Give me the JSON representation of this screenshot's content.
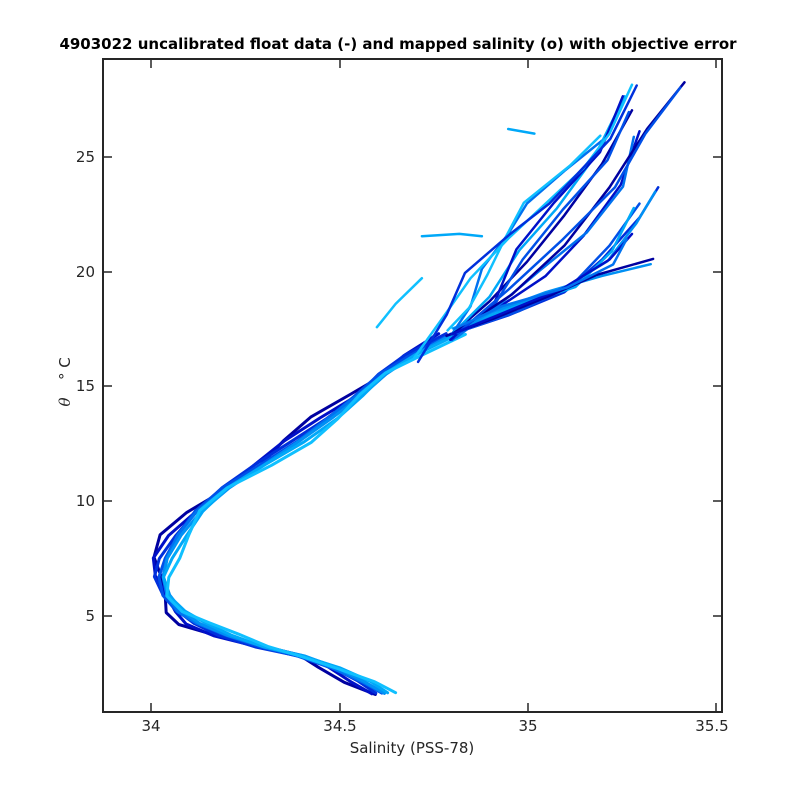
{
  "chart_data": {
    "type": "line",
    "title": "4903022 uncalibrated float data (-) and mapped salinity (o) with objective error",
    "xlabel": "Salinity (PSS-78)",
    "ylabel_symbol": "θ",
    "ylabel_unit": "° C",
    "xlim": [
      33.87,
      35.52
    ],
    "ylim": [
      1.0,
      29.0
    ],
    "xticks": [
      34,
      34.5,
      35,
      35.5
    ],
    "yticks": [
      5,
      10,
      15,
      20,
      25
    ],
    "xtick_labels": [
      "34",
      "34.5",
      "35",
      "35.5"
    ],
    "ytick_labels": [
      "5",
      "10",
      "15",
      "20",
      "25"
    ],
    "grid": false,
    "colors": [
      "#0000a0",
      "#0010c8",
      "#0030dc",
      "#0050e8",
      "#0072f0",
      "#0090f4",
      "#00a8f8",
      "#10c0ff"
    ],
    "deep_profile": {
      "salinity": [
        34.62,
        34.56,
        34.48,
        34.4,
        34.3,
        34.2,
        34.12,
        34.07,
        34.04,
        34.03,
        34.04,
        34.07,
        34.12,
        34.2,
        34.3,
        34.39,
        34.47,
        34.55,
        34.62,
        34.7,
        34.8
      ],
      "theta": [
        1.8,
        2.3,
        2.9,
        3.4,
        3.8,
        4.3,
        4.8,
        5.3,
        6.0,
        6.8,
        7.6,
        8.6,
        9.6,
        10.6,
        11.6,
        12.6,
        13.6,
        14.6,
        15.5,
        16.3,
        17.2
      ]
    },
    "upper_profiles": [
      {
        "salinity": [
          34.8,
          34.9,
          35.0,
          35.1,
          35.2,
          35.28
        ],
        "theta": [
          17.2,
          18.6,
          20.3,
          22.3,
          24.5,
          26.8
        ]
      },
      {
        "salinity": [
          34.8,
          34.92,
          35.05,
          35.15,
          35.25,
          35.3
        ],
        "theta": [
          17.2,
          18.3,
          19.7,
          21.4,
          23.6,
          25.9
        ]
      },
      {
        "salinity": [
          34.8,
          34.95,
          35.1,
          35.2,
          35.3,
          35.35
        ],
        "theta": [
          17.2,
          18.0,
          19.0,
          20.4,
          22.2,
          23.5
        ]
      },
      {
        "salinity": [
          34.8,
          34.98,
          35.12,
          35.22,
          35.3
        ],
        "theta": [
          17.2,
          18.2,
          19.3,
          21.0,
          22.8
        ]
      },
      {
        "salinity": [
          34.8,
          34.85,
          34.88,
          34.95,
          35.0,
          35.1,
          35.2
        ],
        "theta": [
          17.2,
          18.4,
          20.0,
          21.5,
          22.8,
          24.2,
          25.5
        ]
      },
      {
        "salinity": [
          34.8,
          34.9,
          35.05,
          35.2,
          35.33
        ],
        "theta": [
          17.2,
          18.1,
          19.0,
          19.7,
          20.2
        ]
      },
      {
        "salinity": [
          34.8,
          34.9,
          34.98,
          35.08,
          35.18,
          35.26
        ],
        "theta": [
          17.2,
          18.8,
          20.8,
          22.6,
          24.8,
          27.4
        ]
      },
      {
        "salinity": [
          34.7,
          34.78,
          34.85,
          34.95,
          35.05,
          35.15,
          35.22,
          35.28
        ],
        "theta": [
          16.2,
          18.0,
          19.6,
          21.3,
          22.8,
          24.3,
          25.8,
          27.9
        ]
      },
      {
        "salinity": [
          34.8,
          34.96,
          35.1,
          35.22,
          35.32,
          35.42
        ],
        "theta": [
          17.2,
          18.9,
          21.0,
          23.5,
          26.0,
          28.0
        ]
      },
      {
        "salinity": [
          34.8,
          34.95,
          35.1,
          35.22,
          35.28
        ],
        "theta": [
          17.2,
          18.2,
          19.2,
          20.4,
          21.5
        ]
      }
    ],
    "annotations_lines": [
      {
        "salinity": [
          34.72,
          34.82,
          34.88
        ],
        "theta": [
          21.4,
          21.5,
          21.4
        ]
      },
      {
        "salinity": [
          34.6,
          34.65,
          34.72
        ],
        "theta": [
          17.5,
          18.5,
          19.6
        ]
      },
      {
        "salinity": [
          34.95,
          35.02
        ],
        "theta": [
          26.0,
          25.8
        ]
      }
    ]
  }
}
